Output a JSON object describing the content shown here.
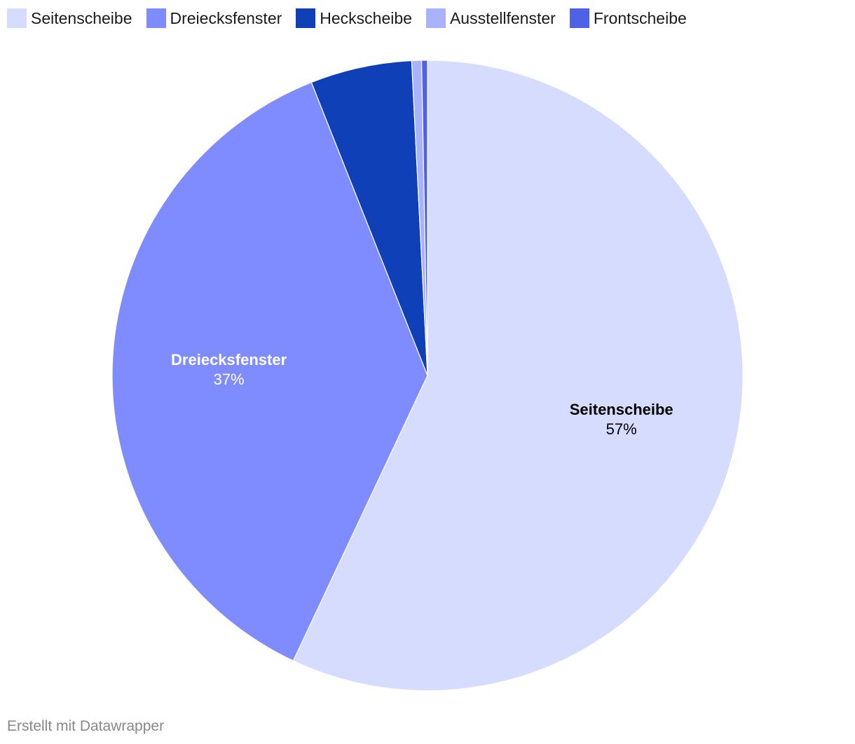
{
  "chart_data": {
    "type": "pie",
    "title": "",
    "legend_position": "top-left",
    "slices": [
      {
        "label": "Seitenscheibe",
        "value": 57,
        "display": "57%",
        "color": "#d6dcfe",
        "label_color": "#000000",
        "show_label": true
      },
      {
        "label": "Dreiecksfenster",
        "value": 37,
        "display": "37%",
        "color": "#7f8cff",
        "label_color": "#ffffff",
        "show_label": true
      },
      {
        "label": "Heckscheibe",
        "value": 5.2,
        "display": "5%",
        "color": "#0f40b8",
        "label_color": "#ffffff",
        "show_label": false
      },
      {
        "label": "Ausstellfenster",
        "value": 0.5,
        "display": "0%",
        "color": "#a9b3fd",
        "label_color": "#000000",
        "show_label": false
      },
      {
        "label": "Frontscheibe",
        "value": 0.3,
        "display": "0%",
        "color": "#4f62e6",
        "label_color": "#ffffff",
        "show_label": false
      }
    ]
  },
  "footer": {
    "credit": "Erstellt mit Datawrapper"
  }
}
